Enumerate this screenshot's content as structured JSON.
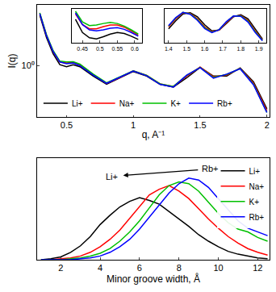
{
  "chart_data": [
    {
      "type": "line",
      "ylabel": "I(q)",
      "xlabel": "q, A⁻¹",
      "log": "y",
      "grid": false,
      "legend": "bottom left",
      "xlim": [
        0.28,
        2.02
      ],
      "xticks": [
        0.5,
        1,
        1.5,
        2
      ],
      "ylim": [
        0.08,
        20
      ],
      "yticks": [
        {
          "value": 1,
          "label": "10⁰"
        }
      ],
      "x": [
        0.3,
        0.35,
        0.4,
        0.45,
        0.5,
        0.55,
        0.6,
        0.7,
        0.8,
        0.9,
        1.0,
        1.1,
        1.2,
        1.3,
        1.4,
        1.5,
        1.6,
        1.7,
        1.8,
        1.9,
        2.0
      ],
      "series": [
        {
          "name": "Li+",
          "color": "#000000",
          "values": [
            12,
            4,
            1.8,
            1.05,
            0.95,
            1.05,
            0.95,
            0.6,
            0.4,
            0.55,
            0.75,
            0.6,
            0.4,
            0.35,
            0.55,
            0.92,
            0.6,
            0.6,
            0.9,
            0.45,
            0.12
          ]
        },
        {
          "name": "Na+",
          "color": "#ff0000",
          "values": [
            13,
            4.5,
            2.0,
            1.2,
            1.15,
            1.19,
            1.05,
            0.65,
            0.42,
            0.56,
            0.78,
            0.62,
            0.41,
            0.36,
            0.6,
            0.93,
            0.58,
            0.63,
            0.88,
            0.42,
            0.11
          ]
        },
        {
          "name": "K+",
          "color": "#00c000",
          "values": [
            13.5,
            4.6,
            2.1,
            1.25,
            1.21,
            1.22,
            1.08,
            0.66,
            0.43,
            0.57,
            0.78,
            0.62,
            0.41,
            0.36,
            0.62,
            0.92,
            0.56,
            0.65,
            0.87,
            0.4,
            0.1
          ]
        },
        {
          "name": "Rb+",
          "color": "#0000ff",
          "values": [
            13,
            4.4,
            2.0,
            1.2,
            1.1,
            1.14,
            1.0,
            0.63,
            0.42,
            0.56,
            0.77,
            0.61,
            0.4,
            0.35,
            0.63,
            0.91,
            0.54,
            0.66,
            0.86,
            0.39,
            0.1
          ]
        }
      ]
    },
    {
      "type": "line",
      "grid": false,
      "tick_labels": "x",
      "xlim": [
        0.42,
        0.62
      ],
      "xticks": [
        0.45,
        0.5,
        0.55,
        0.6
      ],
      "ylim": [
        0.85,
        1.5
      ],
      "x": [
        0.43,
        0.45,
        0.47,
        0.49,
        0.51,
        0.53,
        0.55,
        0.57,
        0.59,
        0.61
      ],
      "series": [
        {
          "name": "Li+",
          "color": "#000000",
          "values": [
            1.3,
            1.05,
            0.95,
            0.93,
            0.97,
            1.02,
            1.05,
            1.03,
            0.98,
            0.92
          ]
        },
        {
          "name": "Na+",
          "color": "#ff0000",
          "values": [
            1.4,
            1.2,
            1.12,
            1.12,
            1.16,
            1.19,
            1.19,
            1.15,
            1.08,
            1.0
          ]
        },
        {
          "name": "K+",
          "color": "#00c000",
          "values": [
            1.45,
            1.25,
            1.18,
            1.19,
            1.22,
            1.24,
            1.22,
            1.17,
            1.1,
            1.02
          ]
        },
        {
          "name": "Rb+",
          "color": "#0000ff",
          "values": [
            1.42,
            1.2,
            1.1,
            1.08,
            1.1,
            1.13,
            1.14,
            1.11,
            1.05,
            0.98
          ]
        }
      ]
    },
    {
      "type": "line",
      "grid": false,
      "tick_labels": "x",
      "xlim": [
        1.38,
        1.94
      ],
      "xticks": [
        1.4,
        1.5,
        1.6,
        1.7,
        1.8,
        1.9
      ],
      "ylim": [
        0.2,
        1.05
      ],
      "x": [
        1.4,
        1.44,
        1.48,
        1.52,
        1.56,
        1.6,
        1.64,
        1.68,
        1.72,
        1.76,
        1.8,
        1.84,
        1.88,
        1.92
      ],
      "series": [
        {
          "name": "Li+",
          "color": "#000000",
          "values": [
            0.55,
            0.75,
            0.92,
            0.95,
            0.85,
            0.65,
            0.5,
            0.52,
            0.68,
            0.85,
            0.9,
            0.8,
            0.55,
            0.3
          ]
        },
        {
          "name": "Na+",
          "color": "#ff0000",
          "values": [
            0.6,
            0.8,
            0.95,
            0.93,
            0.8,
            0.6,
            0.48,
            0.52,
            0.7,
            0.86,
            0.88,
            0.76,
            0.5,
            0.28
          ]
        },
        {
          "name": "K+",
          "color": "#00c000",
          "values": [
            0.62,
            0.82,
            0.96,
            0.92,
            0.78,
            0.58,
            0.47,
            0.53,
            0.72,
            0.87,
            0.87,
            0.74,
            0.48,
            0.27
          ]
        },
        {
          "name": "Rb+",
          "color": "#0000ff",
          "values": [
            0.63,
            0.83,
            0.96,
            0.91,
            0.76,
            0.56,
            0.46,
            0.53,
            0.73,
            0.87,
            0.86,
            0.72,
            0.46,
            0.26
          ]
        }
      ]
    },
    {
      "type": "line",
      "xlabel": "Minor groove width, Å",
      "grid": false,
      "legend": "top right",
      "tick_labels": "x",
      "xlim": [
        0.8,
        12.6
      ],
      "xticks": [
        2,
        4,
        6,
        8,
        10,
        12
      ],
      "ylim": [
        0,
        1.1
      ],
      "x": [
        1,
        1.5,
        2,
        2.5,
        3,
        3.5,
        4,
        4.5,
        5,
        5.5,
        6,
        6.5,
        7,
        7.5,
        8,
        8.5,
        9,
        9.5,
        10,
        10.5,
        11,
        11.5,
        12,
        12.5
      ],
      "series": [
        {
          "name": "Li+",
          "color": "#000000",
          "values": [
            0,
            0.01,
            0.03,
            0.08,
            0.15,
            0.25,
            0.38,
            0.48,
            0.57,
            0.63,
            0.67,
            0.64,
            0.6,
            0.52,
            0.44,
            0.36,
            0.27,
            0.2,
            0.14,
            0.09,
            0.06,
            0.04,
            0.02,
            0.01
          ]
        },
        {
          "name": "Na+",
          "color": "#ff0000",
          "values": [
            0,
            0,
            0.01,
            0.02,
            0.04,
            0.08,
            0.14,
            0.22,
            0.32,
            0.45,
            0.58,
            0.7,
            0.76,
            0.8,
            0.74,
            0.66,
            0.55,
            0.44,
            0.34,
            0.25,
            0.18,
            0.12,
            0.08,
            0.05
          ]
        },
        {
          "name": "K+",
          "color": "#00c000",
          "values": [
            0,
            0,
            0,
            0.01,
            0.02,
            0.04,
            0.07,
            0.12,
            0.2,
            0.3,
            0.42,
            0.56,
            0.7,
            0.8,
            0.84,
            0.82,
            0.74,
            0.62,
            0.5,
            0.4,
            0.33,
            0.3,
            0.24,
            0.2
          ]
        },
        {
          "name": "Rb+",
          "color": "#0000ff",
          "values": [
            0,
            0,
            0,
            0,
            0.01,
            0.02,
            0.04,
            0.08,
            0.14,
            0.22,
            0.33,
            0.46,
            0.6,
            0.72,
            0.82,
            0.88,
            0.86,
            0.78,
            0.66,
            0.54,
            0.42,
            0.34,
            0.3,
            0.26
          ]
        }
      ],
      "annotations": [
        {
          "text": "Rb+",
          "x": 9.6,
          "y": 0.98
        },
        {
          "text": "Li+",
          "x": 4.6,
          "y": 0.9
        }
      ]
    }
  ]
}
